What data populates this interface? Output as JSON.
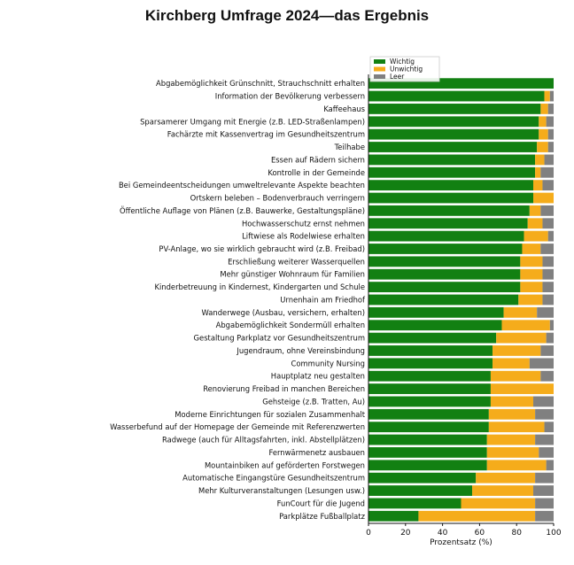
{
  "chart_data": {
    "type": "bar",
    "orientation": "horizontal",
    "stacked": true,
    "title": "Kirchberg Umfrage 2024—das Ergebnis",
    "xlabel": "Prozentsatz (%)",
    "ylabel": "",
    "xlim": [
      0,
      100
    ],
    "xticks": [
      "0",
      "20",
      "40",
      "60",
      "80",
      "100"
    ],
    "legend_position": "top-left",
    "grid": false,
    "colors": {
      "Wichtig": "#128012",
      "Unwichtig": "#f5ac1b",
      "Leer": "#808080"
    },
    "categories": [
      "Abgabemöglichkeit Grünschnitt, Strauchschnitt erhalten",
      "Information der Bevölkerung verbessern",
      "Kaffeehaus",
      "Sparsamerer Umgang mit Energie (z.B. LED-Straßenlampen)",
      "Fachärzte mit Kassenvertrag im Gesundheitszentrum",
      "Teilhabe",
      "Essen auf Rädern sichern",
      "Kontrolle in der Gemeinde",
      "Bei Gemeindeentscheidungen umweltrelevante Aspekte beachten",
      "Ortskern beleben – Bodenverbrauch verringern",
      "Öffentliche Auflage von Plänen (z.B. Bauwerke, Gestaltungspläne)",
      "Hochwasserschutz ernst nehmen",
      "Liftwiese als Rodelwiese erhalten",
      "PV-Anlage, wo sie wirklich gebraucht wird (z.B. Freibad)",
      "Erschließung weiterer Wasserquellen",
      "Mehr günstiger Wohnraum für Familien",
      "Kinderbetreuung in Kindernest, Kindergarten und Schule",
      "Urnenhain am Friedhof",
      "Wanderwege (Ausbau, versichern, erhalten)",
      "Abgabemöglichkeit Sondermüll erhalten",
      "Gestaltung Parkplatz vor Gesundheitszentrum",
      "Jugendraum, ohne Vereinsbindung",
      "Community Nursing",
      "Hauptplatz neu gestalten",
      "Renovierung Freibad in manchen Bereichen",
      "Gehsteige (z.B. Tratten, Au)",
      "Moderne Einrichtungen für sozialen Zusammenhalt",
      "Wasserbefund auf der Homepage der Gemeinde mit Referenzwerten",
      "Radwege (auch für Alltagsfahrten, inkl. Abstellplätzen)",
      "Fernwärmenetz ausbauen",
      "Mountainbiken auf geförderten Forstwegen",
      "Automatische Eingangstüre Gesundheitszentrum",
      "Mehr Kulturveranstaltungen (Lesungen usw.)",
      "FunCourt für die Jugend",
      "Parkplätze Fußballplatz"
    ],
    "series": [
      {
        "name": "Wichtig",
        "values": [
          100,
          95,
          93,
          92,
          92,
          91,
          90,
          90,
          89,
          89,
          87,
          86,
          84,
          83,
          82,
          82,
          82,
          81,
          73,
          72,
          69,
          67,
          67,
          66,
          66,
          66,
          65,
          65,
          64,
          64,
          64,
          58,
          56,
          50,
          27
        ]
      },
      {
        "name": "Unwichtig",
        "values": [
          0,
          3,
          4,
          4,
          5,
          6,
          5,
          3,
          5,
          11,
          6,
          8,
          13,
          10,
          12,
          12,
          12,
          13,
          18,
          26,
          27,
          26,
          20,
          27,
          34,
          23,
          25,
          30,
          26,
          28,
          32,
          32,
          33,
          40,
          63
        ]
      },
      {
        "name": "Leer",
        "values": [
          0,
          2,
          3,
          4,
          3,
          3,
          5,
          7,
          6,
          0,
          7,
          6,
          3,
          7,
          6,
          6,
          6,
          6,
          9,
          2,
          4,
          7,
          13,
          7,
          0,
          11,
          10,
          5,
          10,
          8,
          4,
          10,
          11,
          10,
          10
        ]
      }
    ]
  }
}
